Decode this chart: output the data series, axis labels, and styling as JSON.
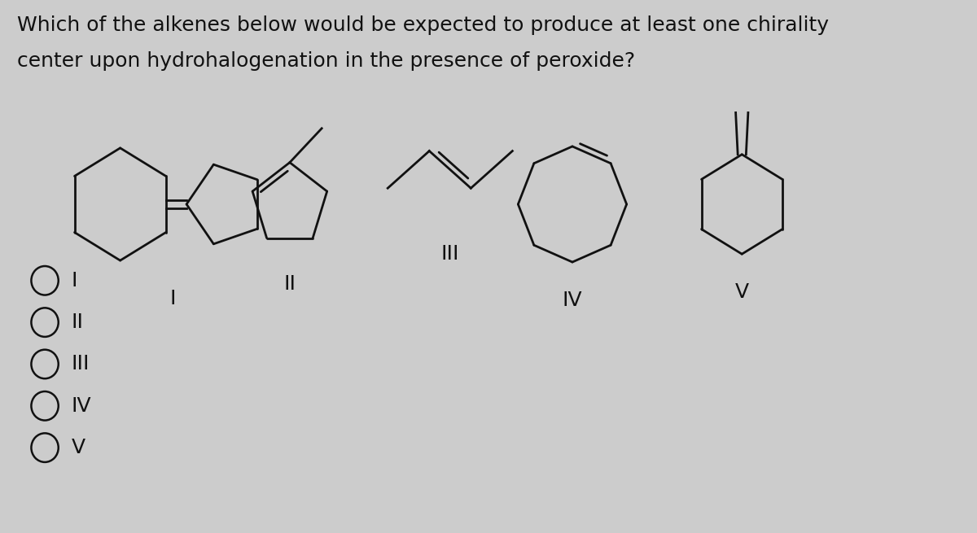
{
  "title_line1": "Which of the alkenes below would be expected to produce at least one chirality",
  "title_line2": "center upon hydrohalogenation in the presence of peroxide?",
  "bg_color": "#cccccc",
  "text_color": "#111111",
  "title_fontsize": 18,
  "label_fontsize": 18,
  "option_fontsize": 18,
  "line_width": 2.0,
  "labels": [
    "I",
    "II",
    "III",
    "IV",
    "V"
  ],
  "options": [
    "I",
    "II",
    "III",
    "IV",
    "V"
  ]
}
